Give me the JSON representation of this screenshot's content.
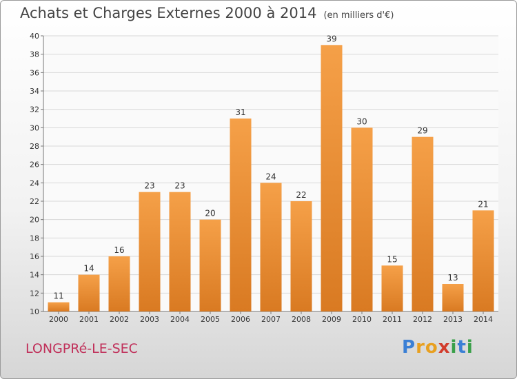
{
  "chart_data": {
    "type": "bar",
    "title": "Achats et Charges Externes 2000 à 2014",
    "subtitle": "(en milliers d'€)",
    "categories": [
      "2000",
      "2001",
      "2002",
      "2003",
      "2004",
      "2005",
      "2006",
      "2007",
      "2008",
      "2009",
      "2010",
      "2011",
      "2012",
      "2013",
      "2014"
    ],
    "values": [
      11,
      14,
      16,
      23,
      23,
      20,
      31,
      24,
      22,
      39,
      30,
      15,
      29,
      13,
      21
    ],
    "ylim": [
      10,
      40
    ],
    "yticks": [
      10,
      12,
      14,
      16,
      18,
      20,
      22,
      24,
      26,
      28,
      30,
      32,
      34,
      36,
      38,
      40
    ],
    "grid": true,
    "bar_color": "#f5a048",
    "bar_color_dark": "#d97a22"
  },
  "footer": {
    "commune": "LONGPRé-LE-SEC",
    "logo_letters": [
      "P",
      "r",
      "o",
      "x",
      "i",
      "t",
      "i"
    ],
    "logo_colors": [
      "#3a7fd5",
      "#e8a020",
      "#e8a020",
      "#d23c2c",
      "#3aa04a",
      "#3a7fd5",
      "#3aa04a"
    ]
  }
}
